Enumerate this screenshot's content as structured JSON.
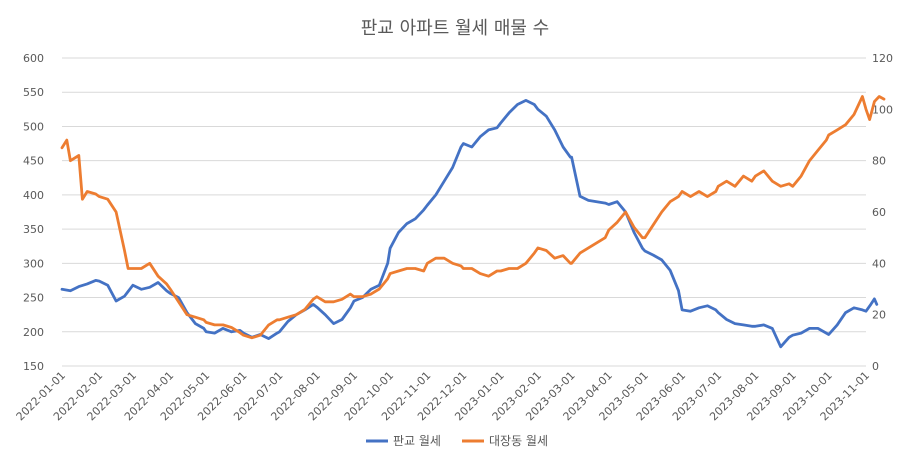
{
  "chart_data": {
    "type": "line",
    "title": "판교 아파트 월세 매물 수",
    "x_ticks": [
      "2022-01-01",
      "2022-02-01",
      "2022-03-01",
      "2022-04-01",
      "2022-05-01",
      "2022-06-01",
      "2022-07-01",
      "2022-08-01",
      "2022-09-01",
      "2022-10-01",
      "2022-11-01",
      "2022-12-01",
      "2023-01-01",
      "2023-02-01",
      "2023-03-01",
      "2023-04-01",
      "2023-05-01",
      "2023-06-01",
      "2023-07-01",
      "2023-08-01",
      "2023-09-01",
      "2023-10-01",
      "2023-11-01"
    ],
    "y_left": {
      "min": 150,
      "max": 600,
      "ticks": [
        150,
        200,
        250,
        300,
        350,
        400,
        450,
        500,
        550,
        600
      ]
    },
    "y_right": {
      "min": 0,
      "max": 120,
      "ticks": [
        0,
        20,
        40,
        60,
        80,
        100,
        120
      ]
    },
    "grid": true,
    "legend_position": "bottom",
    "series": [
      {
        "name": "판교 월세",
        "axis": "left",
        "color": "#4472C4",
        "points": [
          [
            "2022-01-01",
            262
          ],
          [
            "2022-01-08",
            260
          ],
          [
            "2022-01-15",
            266
          ],
          [
            "2022-01-22",
            270
          ],
          [
            "2022-01-29",
            275
          ],
          [
            "2022-02-01",
            274
          ],
          [
            "2022-02-08",
            268
          ],
          [
            "2022-02-15",
            245
          ],
          [
            "2022-02-22",
            252
          ],
          [
            "2022-03-01",
            268
          ],
          [
            "2022-03-08",
            262
          ],
          [
            "2022-03-15",
            265
          ],
          [
            "2022-03-22",
            272
          ],
          [
            "2022-03-29",
            260
          ],
          [
            "2022-04-01",
            256
          ],
          [
            "2022-04-08",
            250
          ],
          [
            "2022-04-15",
            228
          ],
          [
            "2022-04-22",
            212
          ],
          [
            "2022-04-29",
            205
          ],
          [
            "2022-05-01",
            200
          ],
          [
            "2022-05-08",
            198
          ],
          [
            "2022-05-15",
            205
          ],
          [
            "2022-05-22",
            200
          ],
          [
            "2022-05-29",
            202
          ],
          [
            "2022-06-01",
            198
          ],
          [
            "2022-06-08",
            192
          ],
          [
            "2022-06-15",
            196
          ],
          [
            "2022-06-22",
            190
          ],
          [
            "2022-06-29",
            198
          ],
          [
            "2022-07-01",
            200
          ],
          [
            "2022-07-08",
            215
          ],
          [
            "2022-07-15",
            225
          ],
          [
            "2022-07-22",
            232
          ],
          [
            "2022-07-29",
            240
          ],
          [
            "2022-08-01",
            236
          ],
          [
            "2022-08-08",
            225
          ],
          [
            "2022-08-15",
            212
          ],
          [
            "2022-08-22",
            218
          ],
          [
            "2022-08-29",
            235
          ],
          [
            "2022-09-01",
            245
          ],
          [
            "2022-09-08",
            250
          ],
          [
            "2022-09-15",
            262
          ],
          [
            "2022-09-22",
            268
          ],
          [
            "2022-09-29",
            300
          ],
          [
            "2022-10-01",
            322
          ],
          [
            "2022-10-08",
            345
          ],
          [
            "2022-10-15",
            358
          ],
          [
            "2022-10-22",
            365
          ],
          [
            "2022-10-29",
            378
          ],
          [
            "2022-11-01",
            385
          ],
          [
            "2022-11-08",
            400
          ],
          [
            "2022-11-15",
            420
          ],
          [
            "2022-11-22",
            440
          ],
          [
            "2022-11-29",
            470
          ],
          [
            "2022-12-01",
            475
          ],
          [
            "2022-12-08",
            470
          ],
          [
            "2022-12-15",
            485
          ],
          [
            "2022-12-22",
            495
          ],
          [
            "2022-12-29",
            498
          ],
          [
            "2023-01-01",
            505
          ],
          [
            "2023-01-08",
            520
          ],
          [
            "2023-01-15",
            532
          ],
          [
            "2023-01-22",
            538
          ],
          [
            "2023-01-29",
            532
          ],
          [
            "2023-02-01",
            525
          ],
          [
            "2023-02-08",
            515
          ],
          [
            "2023-02-15",
            495
          ],
          [
            "2023-02-22",
            470
          ],
          [
            "2023-02-28",
            455
          ],
          [
            "2023-03-01",
            455
          ],
          [
            "2023-03-08",
            398
          ],
          [
            "2023-03-15",
            392
          ],
          [
            "2023-03-22",
            390
          ],
          [
            "2023-03-29",
            388
          ],
          [
            "2023-04-01",
            386
          ],
          [
            "2023-04-08",
            390
          ],
          [
            "2023-04-15",
            375
          ],
          [
            "2023-04-22",
            345
          ],
          [
            "2023-04-29",
            322
          ],
          [
            "2023-05-01",
            318
          ],
          [
            "2023-05-08",
            312
          ],
          [
            "2023-05-15",
            305
          ],
          [
            "2023-05-22",
            290
          ],
          [
            "2023-05-29",
            260
          ],
          [
            "2023-06-01",
            232
          ],
          [
            "2023-06-08",
            230
          ],
          [
            "2023-06-15",
            235
          ],
          [
            "2023-06-22",
            238
          ],
          [
            "2023-06-29",
            232
          ],
          [
            "2023-07-01",
            228
          ],
          [
            "2023-07-08",
            218
          ],
          [
            "2023-07-15",
            212
          ],
          [
            "2023-07-22",
            210
          ],
          [
            "2023-07-29",
            208
          ],
          [
            "2023-08-01",
            208
          ],
          [
            "2023-08-08",
            210
          ],
          [
            "2023-08-15",
            205
          ],
          [
            "2023-08-22",
            178
          ],
          [
            "2023-08-29",
            192
          ],
          [
            "2023-09-01",
            195
          ],
          [
            "2023-09-08",
            198
          ],
          [
            "2023-09-15",
            205
          ],
          [
            "2023-09-22",
            205
          ],
          [
            "2023-09-29",
            198
          ],
          [
            "2023-10-01",
            196
          ],
          [
            "2023-10-08",
            210
          ],
          [
            "2023-10-15",
            228
          ],
          [
            "2023-10-22",
            235
          ],
          [
            "2023-10-29",
            232
          ],
          [
            "2023-11-01",
            230
          ],
          [
            "2023-11-05",
            240
          ],
          [
            "2023-11-08",
            248
          ],
          [
            "2023-11-10",
            240
          ]
        ]
      },
      {
        "name": "대장동 월세",
        "axis": "right",
        "color": "#ED7D31",
        "points": [
          [
            "2022-01-01",
            85
          ],
          [
            "2022-01-05",
            88
          ],
          [
            "2022-01-08",
            80
          ],
          [
            "2022-01-15",
            82
          ],
          [
            "2022-01-18",
            65
          ],
          [
            "2022-01-22",
            68
          ],
          [
            "2022-01-29",
            67
          ],
          [
            "2022-02-01",
            66
          ],
          [
            "2022-02-08",
            65
          ],
          [
            "2022-02-15",
            60
          ],
          [
            "2022-02-22",
            45
          ],
          [
            "2022-02-25",
            38
          ],
          [
            "2022-03-01",
            38
          ],
          [
            "2022-03-08",
            38
          ],
          [
            "2022-03-15",
            40
          ],
          [
            "2022-03-22",
            35
          ],
          [
            "2022-03-29",
            32
          ],
          [
            "2022-04-01",
            30
          ],
          [
            "2022-04-08",
            25
          ],
          [
            "2022-04-15",
            20
          ],
          [
            "2022-04-22",
            19
          ],
          [
            "2022-04-29",
            18
          ],
          [
            "2022-05-01",
            17
          ],
          [
            "2022-05-08",
            16
          ],
          [
            "2022-05-15",
            16
          ],
          [
            "2022-05-22",
            15
          ],
          [
            "2022-05-29",
            13
          ],
          [
            "2022-06-01",
            12
          ],
          [
            "2022-06-08",
            11
          ],
          [
            "2022-06-15",
            12
          ],
          [
            "2022-06-22",
            16
          ],
          [
            "2022-06-29",
            18
          ],
          [
            "2022-07-01",
            18
          ],
          [
            "2022-07-08",
            19
          ],
          [
            "2022-07-15",
            20
          ],
          [
            "2022-07-22",
            22
          ],
          [
            "2022-07-29",
            26
          ],
          [
            "2022-08-01",
            27
          ],
          [
            "2022-08-08",
            25
          ],
          [
            "2022-08-15",
            25
          ],
          [
            "2022-08-22",
            26
          ],
          [
            "2022-08-29",
            28
          ],
          [
            "2022-09-01",
            27
          ],
          [
            "2022-09-08",
            27
          ],
          [
            "2022-09-15",
            28
          ],
          [
            "2022-09-22",
            30
          ],
          [
            "2022-09-29",
            34
          ],
          [
            "2022-10-01",
            36
          ],
          [
            "2022-10-08",
            37
          ],
          [
            "2022-10-15",
            38
          ],
          [
            "2022-10-22",
            38
          ],
          [
            "2022-10-29",
            37
          ],
          [
            "2022-11-01",
            40
          ],
          [
            "2022-11-08",
            42
          ],
          [
            "2022-11-15",
            42
          ],
          [
            "2022-11-22",
            40
          ],
          [
            "2022-11-29",
            39
          ],
          [
            "2022-12-01",
            38
          ],
          [
            "2022-12-08",
            38
          ],
          [
            "2022-12-15",
            36
          ],
          [
            "2022-12-22",
            35
          ],
          [
            "2022-12-29",
            37
          ],
          [
            "2023-01-01",
            37
          ],
          [
            "2023-01-08",
            38
          ],
          [
            "2023-01-15",
            38
          ],
          [
            "2023-01-22",
            40
          ],
          [
            "2023-01-29",
            44
          ],
          [
            "2023-02-01",
            46
          ],
          [
            "2023-02-08",
            45
          ],
          [
            "2023-02-15",
            42
          ],
          [
            "2023-02-22",
            43
          ],
          [
            "2023-02-28",
            40
          ],
          [
            "2023-03-01",
            40
          ],
          [
            "2023-03-08",
            44
          ],
          [
            "2023-03-15",
            46
          ],
          [
            "2023-03-22",
            48
          ],
          [
            "2023-03-29",
            50
          ],
          [
            "2023-04-01",
            53
          ],
          [
            "2023-04-08",
            56
          ],
          [
            "2023-04-15",
            60
          ],
          [
            "2023-04-22",
            54
          ],
          [
            "2023-04-29",
            50
          ],
          [
            "2023-05-01",
            50
          ],
          [
            "2023-05-08",
            55
          ],
          [
            "2023-05-15",
            60
          ],
          [
            "2023-05-22",
            64
          ],
          [
            "2023-05-29",
            66
          ],
          [
            "2023-06-01",
            68
          ],
          [
            "2023-06-08",
            66
          ],
          [
            "2023-06-15",
            68
          ],
          [
            "2023-06-22",
            66
          ],
          [
            "2023-06-29",
            68
          ],
          [
            "2023-07-01",
            70
          ],
          [
            "2023-07-08",
            72
          ],
          [
            "2023-07-15",
            70
          ],
          [
            "2023-07-22",
            74
          ],
          [
            "2023-07-29",
            72
          ],
          [
            "2023-08-01",
            74
          ],
          [
            "2023-08-08",
            76
          ],
          [
            "2023-08-15",
            72
          ],
          [
            "2023-08-22",
            70
          ],
          [
            "2023-08-29",
            71
          ],
          [
            "2023-09-01",
            70
          ],
          [
            "2023-09-08",
            74
          ],
          [
            "2023-09-15",
            80
          ],
          [
            "2023-09-22",
            84
          ],
          [
            "2023-09-29",
            88
          ],
          [
            "2023-10-01",
            90
          ],
          [
            "2023-10-08",
            92
          ],
          [
            "2023-10-15",
            94
          ],
          [
            "2023-10-22",
            98
          ],
          [
            "2023-10-29",
            105
          ],
          [
            "2023-11-01",
            100
          ],
          [
            "2023-11-04",
            96
          ],
          [
            "2023-11-08",
            103
          ],
          [
            "2023-11-12",
            105
          ],
          [
            "2023-11-16",
            104
          ]
        ]
      }
    ]
  }
}
